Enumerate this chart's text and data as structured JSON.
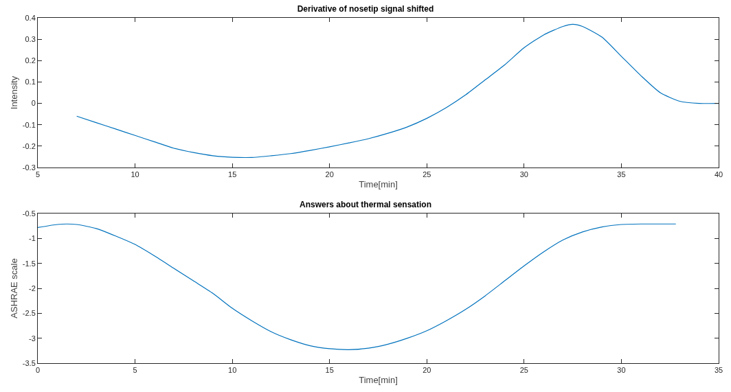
{
  "chart_data": [
    {
      "type": "line",
      "title": "Derivative of nosetip signal shifted",
      "xlabel": "Time[min]",
      "ylabel": "Intensity",
      "xlim": [
        5,
        40
      ],
      "xticks": [
        5,
        10,
        15,
        20,
        25,
        30,
        35,
        40
      ],
      "ylim": [
        -0.3,
        0.4
      ],
      "yticks": [
        -0.3,
        -0.2,
        -0.1,
        0,
        0.1,
        0.2,
        0.3,
        0.4
      ],
      "grid": false,
      "marker": "none",
      "line_style": "solid",
      "x": [
        7,
        8,
        9,
        10,
        11,
        12,
        13,
        14,
        15,
        16,
        17,
        18,
        19,
        20,
        21,
        22,
        23,
        24,
        25,
        26,
        27,
        28,
        29,
        30,
        31,
        32,
        32.5,
        33,
        34,
        35,
        36,
        37,
        38,
        39,
        40
      ],
      "series": [
        {
          "color": "#0072bd",
          "values": [
            -0.06,
            -0.09,
            -0.12,
            -0.15,
            -0.18,
            -0.21,
            -0.23,
            -0.245,
            -0.252,
            -0.253,
            -0.245,
            -0.235,
            -0.22,
            -0.203,
            -0.185,
            -0.165,
            -0.14,
            -0.11,
            -0.07,
            -0.02,
            0.04,
            0.11,
            0.18,
            0.26,
            0.32,
            0.36,
            0.37,
            0.36,
            0.31,
            0.22,
            0.13,
            0.05,
            0.01,
            0.0,
            0.0
          ]
        }
      ]
    },
    {
      "type": "line",
      "title": "Answers about thermal sensation",
      "xlabel": "Time[min]",
      "ylabel": "ASHRAE scale",
      "xlim": [
        0,
        35
      ],
      "xticks": [
        0,
        5,
        10,
        15,
        20,
        25,
        30,
        35
      ],
      "ylim": [
        -3.5,
        -0.5
      ],
      "yticks": [
        -3.5,
        -3,
        -2.5,
        -2,
        -1.5,
        -1,
        -0.5
      ],
      "grid": false,
      "marker": "none",
      "line_style": "solid",
      "x": [
        0,
        1,
        1.5,
        2,
        3,
        4,
        5,
        6,
        7,
        8,
        9,
        10,
        11,
        12,
        13,
        14,
        15,
        16,
        17,
        18,
        19,
        20,
        21,
        22,
        23,
        24,
        25,
        26,
        27,
        28,
        29,
        30,
        31,
        32.8
      ],
      "series": [
        {
          "color": "#0072bd",
          "values": [
            -0.78,
            -0.72,
            -0.71,
            -0.72,
            -0.8,
            -0.95,
            -1.12,
            -1.35,
            -1.6,
            -1.85,
            -2.1,
            -2.4,
            -2.65,
            -2.87,
            -3.03,
            -3.15,
            -3.21,
            -3.23,
            -3.2,
            -3.12,
            -3.0,
            -2.85,
            -2.65,
            -2.42,
            -2.15,
            -1.85,
            -1.55,
            -1.27,
            -1.03,
            -0.87,
            -0.77,
            -0.72,
            -0.71,
            -0.71
          ]
        }
      ]
    }
  ]
}
